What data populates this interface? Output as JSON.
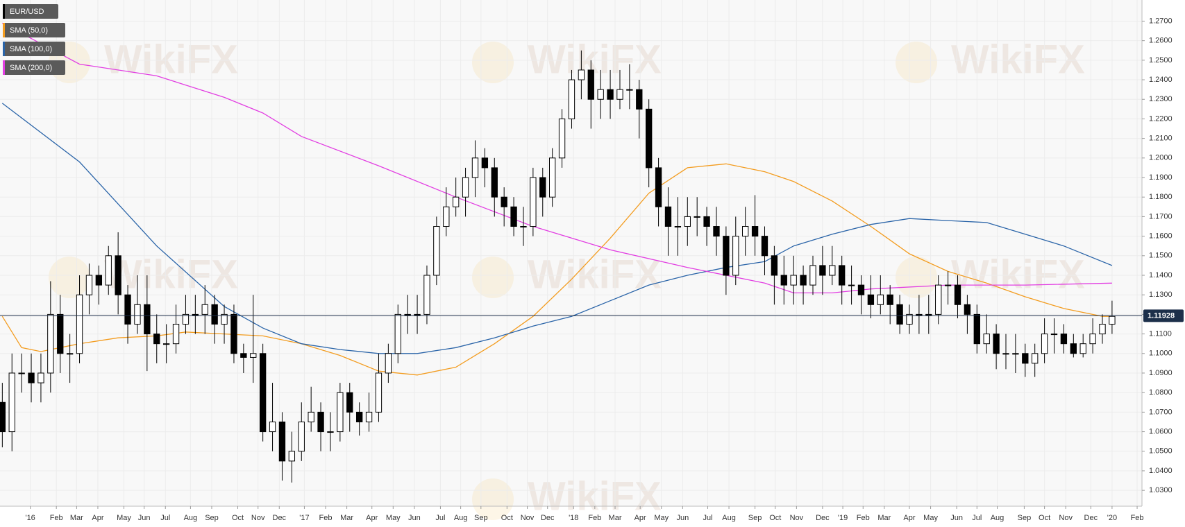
{
  "watermark": "WikiFX",
  "chart_data": {
    "type": "candlestick",
    "ohlc": {
      "name": "EUR/USD",
      "legend_color": "#000000",
      "up_color": "#ffffff",
      "down_color": "#000000",
      "open": [
        1.075,
        1.06,
        1.09,
        1.09,
        1.085,
        1.09,
        1.12,
        1.1,
        1.1,
        1.13,
        1.14,
        1.135,
        1.15,
        1.13,
        1.115,
        1.125,
        1.11,
        1.105,
        1.105,
        1.115,
        1.12,
        1.12,
        1.125,
        1.115,
        1.12,
        1.1,
        1.098,
        1.1,
        1.06,
        1.065,
        1.045,
        1.05,
        1.065,
        1.07,
        1.06,
        1.06,
        1.08,
        1.07,
        1.065,
        1.07,
        1.09,
        1.1,
        1.12,
        1.12,
        1.12,
        1.14,
        1.165,
        1.175,
        1.18,
        1.19,
        1.2,
        1.195,
        1.18,
        1.175,
        1.165,
        1.165,
        1.19,
        1.18,
        1.2,
        1.22,
        1.24,
        1.245,
        1.23,
        1.235,
        1.23,
        1.235,
        1.235,
        1.225,
        1.195,
        1.175,
        1.165,
        1.165,
        1.17,
        1.17,
        1.165,
        1.16,
        1.14,
        1.16,
        1.165,
        1.16,
        1.15,
        1.14,
        1.135,
        1.14,
        1.135,
        1.145,
        1.14,
        1.145,
        1.135,
        1.135,
        1.13,
        1.125,
        1.13,
        1.125,
        1.115,
        1.12,
        1.12,
        1.12,
        1.135,
        1.135,
        1.125,
        1.12,
        1.105,
        1.11,
        1.1,
        1.1,
        1.1,
        1.095,
        1.1,
        1.11,
        1.11,
        1.105,
        1.1,
        1.105,
        1.11,
        1.115
      ],
      "high": [
        1.085,
        1.1,
        1.1,
        1.1,
        1.1,
        1.137,
        1.13,
        1.11,
        1.14,
        1.146,
        1.145,
        1.155,
        1.162,
        1.135,
        1.14,
        1.14,
        1.12,
        1.115,
        1.125,
        1.13,
        1.13,
        1.135,
        1.13,
        1.125,
        1.125,
        1.105,
        1.13,
        1.105,
        1.085,
        1.07,
        1.06,
        1.075,
        1.083,
        1.075,
        1.07,
        1.085,
        1.085,
        1.075,
        1.08,
        1.1,
        1.105,
        1.125,
        1.13,
        1.13,
        1.145,
        1.17,
        1.185,
        1.19,
        1.195,
        1.209,
        1.205,
        1.2,
        1.185,
        1.18,
        1.175,
        1.195,
        1.195,
        1.205,
        1.225,
        1.245,
        1.255,
        1.25,
        1.245,
        1.245,
        1.245,
        1.248,
        1.24,
        1.23,
        1.2,
        1.185,
        1.18,
        1.18,
        1.18,
        1.175,
        1.175,
        1.165,
        1.17,
        1.175,
        1.181,
        1.165,
        1.155,
        1.15,
        1.15,
        1.145,
        1.15,
        1.155,
        1.155,
        1.15,
        1.145,
        1.14,
        1.14,
        1.14,
        1.135,
        1.13,
        1.125,
        1.13,
        1.13,
        1.14,
        1.142,
        1.14,
        1.13,
        1.125,
        1.12,
        1.115,
        1.11,
        1.11,
        1.105,
        1.105,
        1.118,
        1.118,
        1.115,
        1.11,
        1.11,
        1.118,
        1.12,
        1.127
      ],
      "low": [
        1.052,
        1.05,
        1.08,
        1.075,
        1.075,
        1.08,
        1.09,
        1.085,
        1.095,
        1.12,
        1.125,
        1.13,
        1.12,
        1.105,
        1.11,
        1.091,
        1.095,
        1.095,
        1.1,
        1.11,
        1.11,
        1.11,
        1.105,
        1.105,
        1.095,
        1.09,
        1.085,
        1.055,
        1.05,
        1.035,
        1.034,
        1.045,
        1.06,
        1.05,
        1.05,
        1.055,
        1.06,
        1.058,
        1.06,
        1.065,
        1.085,
        1.095,
        1.11,
        1.11,
        1.115,
        1.135,
        1.16,
        1.17,
        1.17,
        1.18,
        1.185,
        1.17,
        1.165,
        1.16,
        1.155,
        1.16,
        1.17,
        1.175,
        1.195,
        1.215,
        1.23,
        1.215,
        1.22,
        1.22,
        1.225,
        1.225,
        1.21,
        1.185,
        1.165,
        1.15,
        1.15,
        1.155,
        1.16,
        1.155,
        1.15,
        1.13,
        1.135,
        1.15,
        1.15,
        1.14,
        1.125,
        1.125,
        1.125,
        1.125,
        1.13,
        1.13,
        1.135,
        1.125,
        1.125,
        1.12,
        1.118,
        1.12,
        1.115,
        1.11,
        1.11,
        1.11,
        1.11,
        1.115,
        1.125,
        1.118,
        1.11,
        1.1,
        1.1,
        1.092,
        1.092,
        1.09,
        1.088,
        1.088,
        1.095,
        1.1,
        1.1,
        1.098,
        1.098,
        1.1,
        1.105,
        1.11
      ],
      "close": [
        1.06,
        1.09,
        1.09,
        1.085,
        1.09,
        1.12,
        1.1,
        1.1,
        1.13,
        1.14,
        1.135,
        1.15,
        1.13,
        1.115,
        1.125,
        1.11,
        1.105,
        1.105,
        1.115,
        1.12,
        1.12,
        1.125,
        1.115,
        1.12,
        1.1,
        1.098,
        1.1,
        1.06,
        1.065,
        1.045,
        1.05,
        1.065,
        1.07,
        1.06,
        1.06,
        1.08,
        1.07,
        1.065,
        1.07,
        1.09,
        1.1,
        1.12,
        1.12,
        1.12,
        1.14,
        1.165,
        1.175,
        1.18,
        1.19,
        1.2,
        1.195,
        1.18,
        1.175,
        1.165,
        1.165,
        1.19,
        1.18,
        1.2,
        1.22,
        1.24,
        1.245,
        1.23,
        1.235,
        1.23,
        1.235,
        1.235,
        1.225,
        1.195,
        1.175,
        1.165,
        1.165,
        1.17,
        1.17,
        1.165,
        1.16,
        1.14,
        1.16,
        1.165,
        1.16,
        1.15,
        1.14,
        1.135,
        1.14,
        1.135,
        1.145,
        1.14,
        1.145,
        1.135,
        1.135,
        1.13,
        1.125,
        1.13,
        1.125,
        1.115,
        1.12,
        1.12,
        1.12,
        1.135,
        1.135,
        1.125,
        1.12,
        1.105,
        1.11,
        1.1,
        1.1,
        1.1,
        1.095,
        1.1,
        1.11,
        1.11,
        1.105,
        1.1,
        1.105,
        1.11,
        1.115,
        1.119
      ]
    },
    "series": [
      {
        "name": "SMA (50,0)",
        "color": "#f39c1f",
        "x": [
          0,
          2,
          4,
          8,
          12,
          16,
          19,
          23,
          27,
          31,
          35,
          39,
          43,
          47,
          51,
          55,
          59,
          63,
          67,
          71,
          75,
          79,
          82,
          86,
          90,
          94,
          98,
          102,
          106,
          110,
          114,
          115
        ],
        "values": [
          1.119,
          1.103,
          1.101,
          1.105,
          1.108,
          1.109,
          1.111,
          1.11,
          1.109,
          1.105,
          1.099,
          1.091,
          1.089,
          1.093,
          1.105,
          1.119,
          1.138,
          1.159,
          1.182,
          1.195,
          1.197,
          1.193,
          1.188,
          1.178,
          1.165,
          1.151,
          1.142,
          1.136,
          1.129,
          1.123,
          1.119,
          1.119
        ]
      },
      {
        "name": "SMA (100,0)",
        "color": "#2a64a8",
        "x": [
          0,
          8,
          16,
          23,
          27,
          31,
          35,
          39,
          43,
          47,
          51,
          55,
          59,
          63,
          67,
          71,
          75,
          79,
          82,
          86,
          90,
          94,
          98,
          102,
          106,
          110,
          115
        ],
        "values": [
          1.228,
          1.198,
          1.155,
          1.124,
          1.113,
          1.105,
          1.102,
          1.1,
          1.1,
          1.103,
          1.108,
          1.114,
          1.119,
          1.127,
          1.135,
          1.14,
          1.144,
          1.147,
          1.155,
          1.161,
          1.166,
          1.169,
          1.168,
          1.167,
          1.161,
          1.155,
          1.145
        ]
      },
      {
        "name": "SMA (200,0)",
        "color": "#e23ee2",
        "x": [
          0,
          8,
          16,
          23,
          27,
          31,
          39,
          47,
          55,
          63,
          71,
          79,
          82,
          86,
          90,
          98,
          106,
          115
        ],
        "values": [
          1.269,
          1.248,
          1.242,
          1.231,
          1.223,
          1.211,
          1.196,
          1.18,
          1.165,
          1.153,
          1.144,
          1.136,
          1.131,
          1.131,
          1.133,
          1.135,
          1.135,
          1.136
        ]
      }
    ],
    "last_price": 1.11928,
    "last_price_color": "#1c2f4a",
    "xlim": [
      -0.24,
      118.1
    ],
    "xticks": [
      {
        "value": 2.9,
        "label": "'16"
      },
      {
        "value": 5.6,
        "label": "Feb"
      },
      {
        "value": 7.7,
        "label": "Mar"
      },
      {
        "value": 9.9,
        "label": "Apr"
      },
      {
        "value": 12.6,
        "label": "May"
      },
      {
        "value": 14.7,
        "label": "Jun"
      },
      {
        "value": 16.9,
        "label": "Jul"
      },
      {
        "value": 19.5,
        "label": "Aug"
      },
      {
        "value": 21.7,
        "label": "Sep"
      },
      {
        "value": 24.4,
        "label": "Oct"
      },
      {
        "value": 26.5,
        "label": "Nov"
      },
      {
        "value": 28.7,
        "label": "Dec"
      },
      {
        "value": 31.3,
        "label": "'17"
      },
      {
        "value": 33.5,
        "label": "Feb"
      },
      {
        "value": 35.7,
        "label": "Mar"
      },
      {
        "value": 38.3,
        "label": "Apr"
      },
      {
        "value": 40.5,
        "label": "May"
      },
      {
        "value": 42.7,
        "label": "Jun"
      },
      {
        "value": 45.4,
        "label": "Jul"
      },
      {
        "value": 47.5,
        "label": "Aug"
      },
      {
        "value": 49.6,
        "label": "Sep"
      },
      {
        "value": 52.3,
        "label": "Oct"
      },
      {
        "value": 54.4,
        "label": "Nov"
      },
      {
        "value": 56.5,
        "label": "Dec"
      },
      {
        "value": 59.2,
        "label": "'18"
      },
      {
        "value": 61.4,
        "label": "Feb"
      },
      {
        "value": 63.5,
        "label": "Mar"
      },
      {
        "value": 66.1,
        "label": "Apr"
      },
      {
        "value": 68.3,
        "label": "May"
      },
      {
        "value": 70.5,
        "label": "Jun"
      },
      {
        "value": 73.1,
        "label": "Jul"
      },
      {
        "value": 75.3,
        "label": "Aug"
      },
      {
        "value": 78.0,
        "label": "Sep"
      },
      {
        "value": 80.1,
        "label": "Oct"
      },
      {
        "value": 82.3,
        "label": "Nov"
      },
      {
        "value": 85.0,
        "label": "Dec"
      },
      {
        "value": 87.1,
        "label": "'19"
      },
      {
        "value": 89.2,
        "label": "Feb"
      },
      {
        "value": 91.4,
        "label": "Mar"
      },
      {
        "value": 94.0,
        "label": "Apr"
      },
      {
        "value": 96.2,
        "label": "May"
      },
      {
        "value": 98.9,
        "label": "Jun"
      },
      {
        "value": 101.0,
        "label": "Jul"
      },
      {
        "value": 103.1,
        "label": "Aug"
      },
      {
        "value": 105.9,
        "label": "Sep"
      },
      {
        "value": 108.0,
        "label": "Oct"
      },
      {
        "value": 110.2,
        "label": "Nov"
      },
      {
        "value": 112.8,
        "label": "Dec"
      },
      {
        "value": 115.0,
        "label": "'20"
      },
      {
        "value": 117.6,
        "label": "Feb"
      }
    ],
    "ylim": [
      1.0219,
      1.2808
    ],
    "yticks": [
      {
        "value": 1.03,
        "label": "1.0300"
      },
      {
        "value": 1.04,
        "label": "1.0400"
      },
      {
        "value": 1.05,
        "label": "1.0500"
      },
      {
        "value": 1.06,
        "label": "1.0600"
      },
      {
        "value": 1.07,
        "label": "1.0700"
      },
      {
        "value": 1.08,
        "label": "1.0800"
      },
      {
        "value": 1.09,
        "label": "1.0900"
      },
      {
        "value": 1.1,
        "label": "1.1000"
      },
      {
        "value": 1.11,
        "label": "1.1100"
      },
      {
        "value": 1.12,
        "label": "1.1200"
      },
      {
        "value": 1.13,
        "label": "1.1300"
      },
      {
        "value": 1.14,
        "label": "1.1400"
      },
      {
        "value": 1.15,
        "label": "1.1500"
      },
      {
        "value": 1.16,
        "label": "1.1600"
      },
      {
        "value": 1.17,
        "label": "1.1700"
      },
      {
        "value": 1.18,
        "label": "1.1800"
      },
      {
        "value": 1.19,
        "label": "1.1900"
      },
      {
        "value": 1.2,
        "label": "1.2000"
      },
      {
        "value": 1.21,
        "label": "1.2100"
      },
      {
        "value": 1.22,
        "label": "1.2200"
      },
      {
        "value": 1.23,
        "label": "1.2300"
      },
      {
        "value": 1.24,
        "label": "1.2400"
      },
      {
        "value": 1.25,
        "label": "1.2500"
      },
      {
        "value": 1.26,
        "label": "1.2600"
      },
      {
        "value": 1.27,
        "label": "1.2700"
      }
    ],
    "grid": true
  }
}
